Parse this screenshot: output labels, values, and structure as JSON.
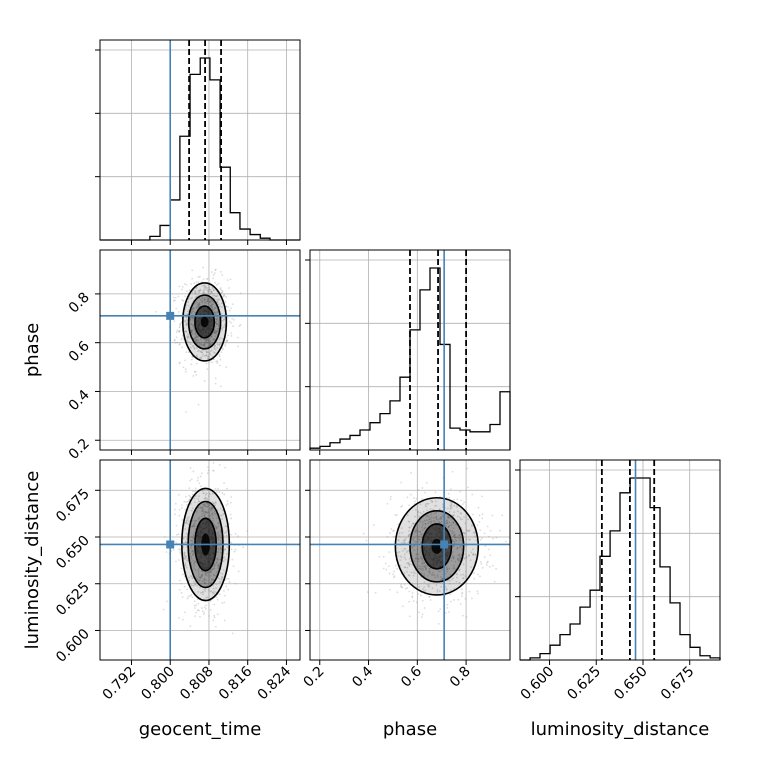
{
  "chart_data": {
    "type": "corner",
    "colors": {
      "truth": "#4682b4",
      "contour": "#000000",
      "samples": "#9a9a9a",
      "grid": "#b0b0b0"
    },
    "parameters": [
      {
        "name": "geocent_time",
        "label": "geocent_time",
        "range": [
          0.7855,
          0.8268
        ],
        "ticks": [
          0.792,
          0.8,
          0.808,
          0.816,
          0.824
        ],
        "tick_labels": [
          "0.792",
          "0.800",
          "0.808",
          "0.816",
          "0.824"
        ],
        "truth": 0.8
      },
      {
        "name": "phase",
        "label": "phase",
        "range": [
          0.16,
          0.98
        ],
        "ticks": [
          0.2,
          0.4,
          0.6,
          0.8
        ],
        "tick_labels": [
          "0.2",
          "0.4",
          "0.6",
          "0.8"
        ],
        "truth": 0.71
      },
      {
        "name": "luminosity_distance",
        "label": "luminosity_distance",
        "range": [
          0.5842,
          0.6912
        ],
        "ticks": [
          0.6,
          0.625,
          0.65,
          0.675
        ],
        "tick_labels": [
          "0.600",
          "0.625",
          "0.650",
          "0.675"
        ],
        "truth": 0.646
      }
    ],
    "histograms": [
      {
        "parameter": "geocent_time",
        "bin_edges": [
          0.7855,
          0.7875,
          0.7896,
          0.7917,
          0.7938,
          0.7958,
          0.7979,
          0.8,
          0.802,
          0.8041,
          0.8062,
          0.8082,
          0.8103,
          0.8124,
          0.8144,
          0.8165,
          0.8186,
          0.8206,
          0.8227,
          0.8248,
          0.8268
        ],
        "counts": [
          0,
          0,
          0,
          0,
          0,
          2,
          8,
          22,
          57,
          91,
          100,
          88,
          40,
          15,
          6,
          3,
          1,
          0,
          0,
          0
        ],
        "quantiles": [
          0.8039,
          0.8072,
          0.8105
        ]
      },
      {
        "parameter": "phase",
        "bin_edges": [
          0.16,
          0.201,
          0.242,
          0.283,
          0.324,
          0.365,
          0.406,
          0.447,
          0.488,
          0.529,
          0.57,
          0.611,
          0.652,
          0.693,
          0.734,
          0.775,
          0.816,
          0.857,
          0.898,
          0.939,
          0.98
        ],
        "counts": [
          1,
          2,
          4,
          6,
          8,
          11,
          15,
          20,
          27,
          40,
          66,
          88,
          100,
          58,
          12,
          11,
          10,
          10,
          14,
          32
        ],
        "quantiles": [
          0.57,
          0.685,
          0.8
        ]
      },
      {
        "parameter": "luminosity_distance",
        "bin_edges": [
          0.5842,
          0.5896,
          0.5949,
          0.6003,
          0.6056,
          0.611,
          0.6163,
          0.6217,
          0.627,
          0.6324,
          0.6377,
          0.6431,
          0.6484,
          0.6538,
          0.6591,
          0.6645,
          0.6698,
          0.6752,
          0.6805,
          0.6859,
          0.6912
        ],
        "counts": [
          0,
          1,
          3,
          7,
          12,
          17,
          25,
          33,
          49,
          61,
          79,
          86,
          86,
          72,
          44,
          27,
          12,
          6,
          2,
          1
        ],
        "quantiles": [
          0.628,
          0.643,
          0.656
        ]
      }
    ],
    "pairs": [
      {
        "x": "geocent_time",
        "y": "phase",
        "center": [
          0.8071,
          0.685
        ],
        "levels": [
          [
            0.0045,
            0.16
          ],
          [
            0.0033,
            0.11
          ],
          [
            0.002,
            0.065
          ],
          [
            0.0008,
            0.022
          ]
        ]
      },
      {
        "x": "geocent_time",
        "y": "luminosity_distance",
        "center": [
          0.8073,
          0.646
        ],
        "levels": [
          [
            0.0049,
            0.03
          ],
          [
            0.0036,
            0.023
          ],
          [
            0.0022,
            0.014
          ],
          [
            0.0009,
            0.006
          ]
        ]
      },
      {
        "x": "phase",
        "y": "luminosity_distance",
        "center": [
          0.68,
          0.645
        ],
        "levels": [
          [
            0.17,
            0.026
          ],
          [
            0.11,
            0.019
          ],
          [
            0.06,
            0.012
          ],
          [
            0.022,
            0.004
          ]
        ]
      }
    ]
  }
}
